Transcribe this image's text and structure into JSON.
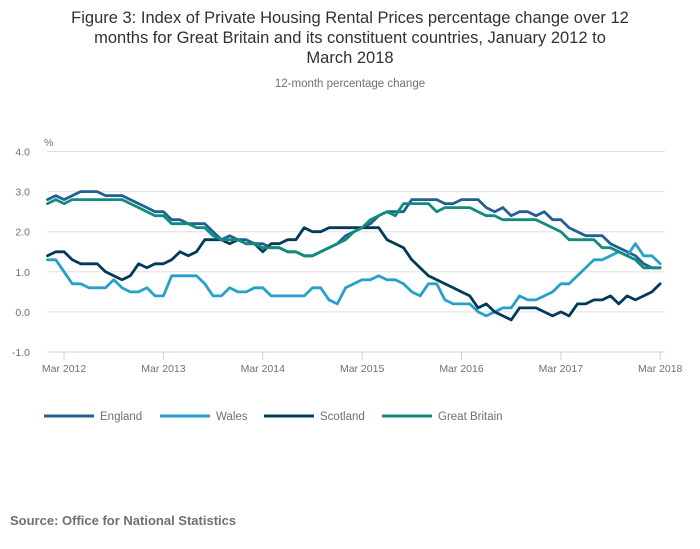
{
  "chart_data": {
    "type": "line",
    "title_lines": [
      "Figure 3: Index of Private Housing Rental Prices percentage change over 12",
      "months for Great Britain and its constituent countries, January 2012 to",
      "March 2018"
    ],
    "subtitle": "12-month percentage change",
    "ylabel": "%",
    "xlabel": "",
    "ylim": [
      -1.0,
      4.0
    ],
    "yticks": [
      "4.0",
      "3.0",
      "2.0",
      "1.0",
      "0.0",
      "-1.0"
    ],
    "ytick_values": [
      4,
      3,
      2,
      1,
      0,
      -1
    ],
    "x_start": "Jan 2012",
    "x_end": "Mar 2018",
    "xticks": [
      {
        "label": "Mar 2012",
        "month_index": 2
      },
      {
        "label": "Mar 2013",
        "month_index": 14
      },
      {
        "label": "Mar 2014",
        "month_index": 26
      },
      {
        "label": "Mar 2015",
        "month_index": 38
      },
      {
        "label": "Mar 2016",
        "month_index": 50
      },
      {
        "label": "Mar 2017",
        "month_index": 62
      },
      {
        "label": "Mar 2018",
        "month_index": 74
      }
    ],
    "grid": true,
    "legend_position": "bottom",
    "series": [
      {
        "name": "England",
        "color": "#206095",
        "values": [
          2.8,
          2.9,
          2.8,
          2.9,
          3.0,
          3.0,
          3.0,
          2.9,
          2.9,
          2.9,
          2.8,
          2.7,
          2.6,
          2.5,
          2.5,
          2.3,
          2.3,
          2.2,
          2.2,
          2.2,
          2.0,
          1.8,
          1.9,
          1.8,
          1.8,
          1.7,
          1.7,
          1.6,
          1.6,
          1.5,
          1.5,
          1.4,
          1.4,
          1.5,
          1.6,
          1.7,
          1.9,
          2.0,
          2.1,
          2.2,
          2.4,
          2.5,
          2.5,
          2.5,
          2.8,
          2.8,
          2.8,
          2.8,
          2.7,
          2.7,
          2.8,
          2.8,
          2.8,
          2.6,
          2.5,
          2.6,
          2.4,
          2.5,
          2.5,
          2.4,
          2.5,
          2.3,
          2.3,
          2.1,
          2.0,
          1.9,
          1.9,
          1.9,
          1.7,
          1.6,
          1.5,
          1.4,
          1.2,
          1.1,
          1.1
        ]
      },
      {
        "name": "Wales",
        "color": "#27a0cc",
        "values": [
          1.3,
          1.3,
          1.0,
          0.7,
          0.7,
          0.6,
          0.6,
          0.6,
          0.8,
          0.6,
          0.5,
          0.5,
          0.6,
          0.4,
          0.4,
          0.9,
          0.9,
          0.9,
          0.9,
          0.7,
          0.4,
          0.4,
          0.6,
          0.5,
          0.5,
          0.6,
          0.6,
          0.4,
          0.4,
          0.4,
          0.4,
          0.4,
          0.6,
          0.6,
          0.3,
          0.2,
          0.6,
          0.7,
          0.8,
          0.8,
          0.9,
          0.8,
          0.8,
          0.7,
          0.5,
          0.4,
          0.7,
          0.7,
          0.3,
          0.2,
          0.2,
          0.2,
          0.0,
          -0.1,
          0.0,
          0.1,
          0.1,
          0.4,
          0.3,
          0.3,
          0.4,
          0.5,
          0.7,
          0.7,
          0.9,
          1.1,
          1.3,
          1.3,
          1.4,
          1.5,
          1.4,
          1.7,
          1.4,
          1.4,
          1.2
        ]
      },
      {
        "name": "Scotland",
        "color": "#003c57",
        "values": [
          1.4,
          1.5,
          1.5,
          1.3,
          1.2,
          1.2,
          1.2,
          1.0,
          0.9,
          0.8,
          0.9,
          1.2,
          1.1,
          1.2,
          1.2,
          1.3,
          1.5,
          1.4,
          1.5,
          1.8,
          1.8,
          1.8,
          1.7,
          1.8,
          1.7,
          1.7,
          1.5,
          1.7,
          1.7,
          1.8,
          1.8,
          2.1,
          2.0,
          2.0,
          2.1,
          2.1,
          2.1,
          2.1,
          2.1,
          2.1,
          2.1,
          1.8,
          1.7,
          1.6,
          1.3,
          1.1,
          0.9,
          0.8,
          0.7,
          0.6,
          0.5,
          0.4,
          0.1,
          0.2,
          0.0,
          -0.1,
          -0.2,
          0.1,
          0.1,
          0.1,
          0.0,
          -0.1,
          0.0,
          -0.1,
          0.2,
          0.2,
          0.3,
          0.3,
          0.4,
          0.2,
          0.4,
          0.3,
          0.4,
          0.5,
          0.7
        ]
      },
      {
        "name": "Great Britain",
        "color": "#118c7b",
        "values": [
          2.7,
          2.8,
          2.7,
          2.8,
          2.8,
          2.8,
          2.8,
          2.8,
          2.8,
          2.8,
          2.7,
          2.6,
          2.5,
          2.4,
          2.4,
          2.2,
          2.2,
          2.2,
          2.1,
          2.1,
          1.9,
          1.8,
          1.8,
          1.8,
          1.7,
          1.7,
          1.6,
          1.6,
          1.6,
          1.5,
          1.5,
          1.4,
          1.4,
          1.5,
          1.6,
          1.7,
          1.8,
          2.0,
          2.1,
          2.3,
          2.4,
          2.5,
          2.4,
          2.7,
          2.7,
          2.7,
          2.7,
          2.5,
          2.6,
          2.6,
          2.6,
          2.6,
          2.5,
          2.4,
          2.4,
          2.3,
          2.3,
          2.3,
          2.3,
          2.3,
          2.2,
          2.1,
          2.0,
          1.8,
          1.8,
          1.8,
          1.8,
          1.6,
          1.6,
          1.5,
          1.4,
          1.3,
          1.1,
          1.1,
          1.1
        ]
      }
    ]
  },
  "source": "Source: Office for National Statistics"
}
